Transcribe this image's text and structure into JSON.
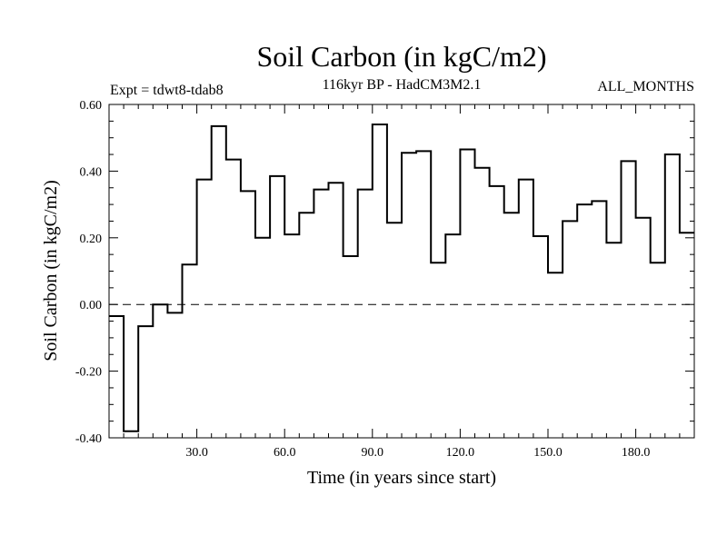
{
  "chart_data": {
    "type": "line",
    "style": "step",
    "title": "Soil Carbon (in kgC/m2)",
    "subtitle": "116kyr BP - HadCM3M2.1",
    "left_label": "Expt = tdwt8-tdab8",
    "right_label": "ALL_MONTHS",
    "xlabel": "Time (in years since start)",
    "ylabel": "Soil Carbon (in kgC/m2)",
    "xlim": [
      0,
      200
    ],
    "ylim": [
      -0.4,
      0.6
    ],
    "xticks": [
      30,
      60,
      90,
      120,
      150,
      180
    ],
    "xtick_labels": [
      "30.0",
      "60.0",
      "90.0",
      "120.0",
      "150.0",
      "180.0"
    ],
    "yticks": [
      -0.4,
      -0.2,
      0.0,
      0.2,
      0.4,
      0.6
    ],
    "ytick_labels": [
      "-0.40",
      "-0.20",
      "0.00",
      "0.20",
      "0.40",
      "0.60"
    ],
    "zero_line": 0.0,
    "step_width": 5,
    "x_start": 0,
    "values": [
      -0.035,
      -0.38,
      -0.065,
      0.0,
      -0.025,
      0.12,
      0.375,
      0.535,
      0.435,
      0.34,
      0.2,
      0.385,
      0.21,
      0.275,
      0.345,
      0.365,
      0.145,
      0.345,
      0.54,
      0.245,
      0.455,
      0.46,
      0.125,
      0.21,
      0.465,
      0.41,
      0.355,
      0.275,
      0.375,
      0.205,
      0.095,
      0.25,
      0.3,
      0.31,
      0.185,
      0.43,
      0.26,
      0.125,
      0.45,
      0.215
    ]
  }
}
